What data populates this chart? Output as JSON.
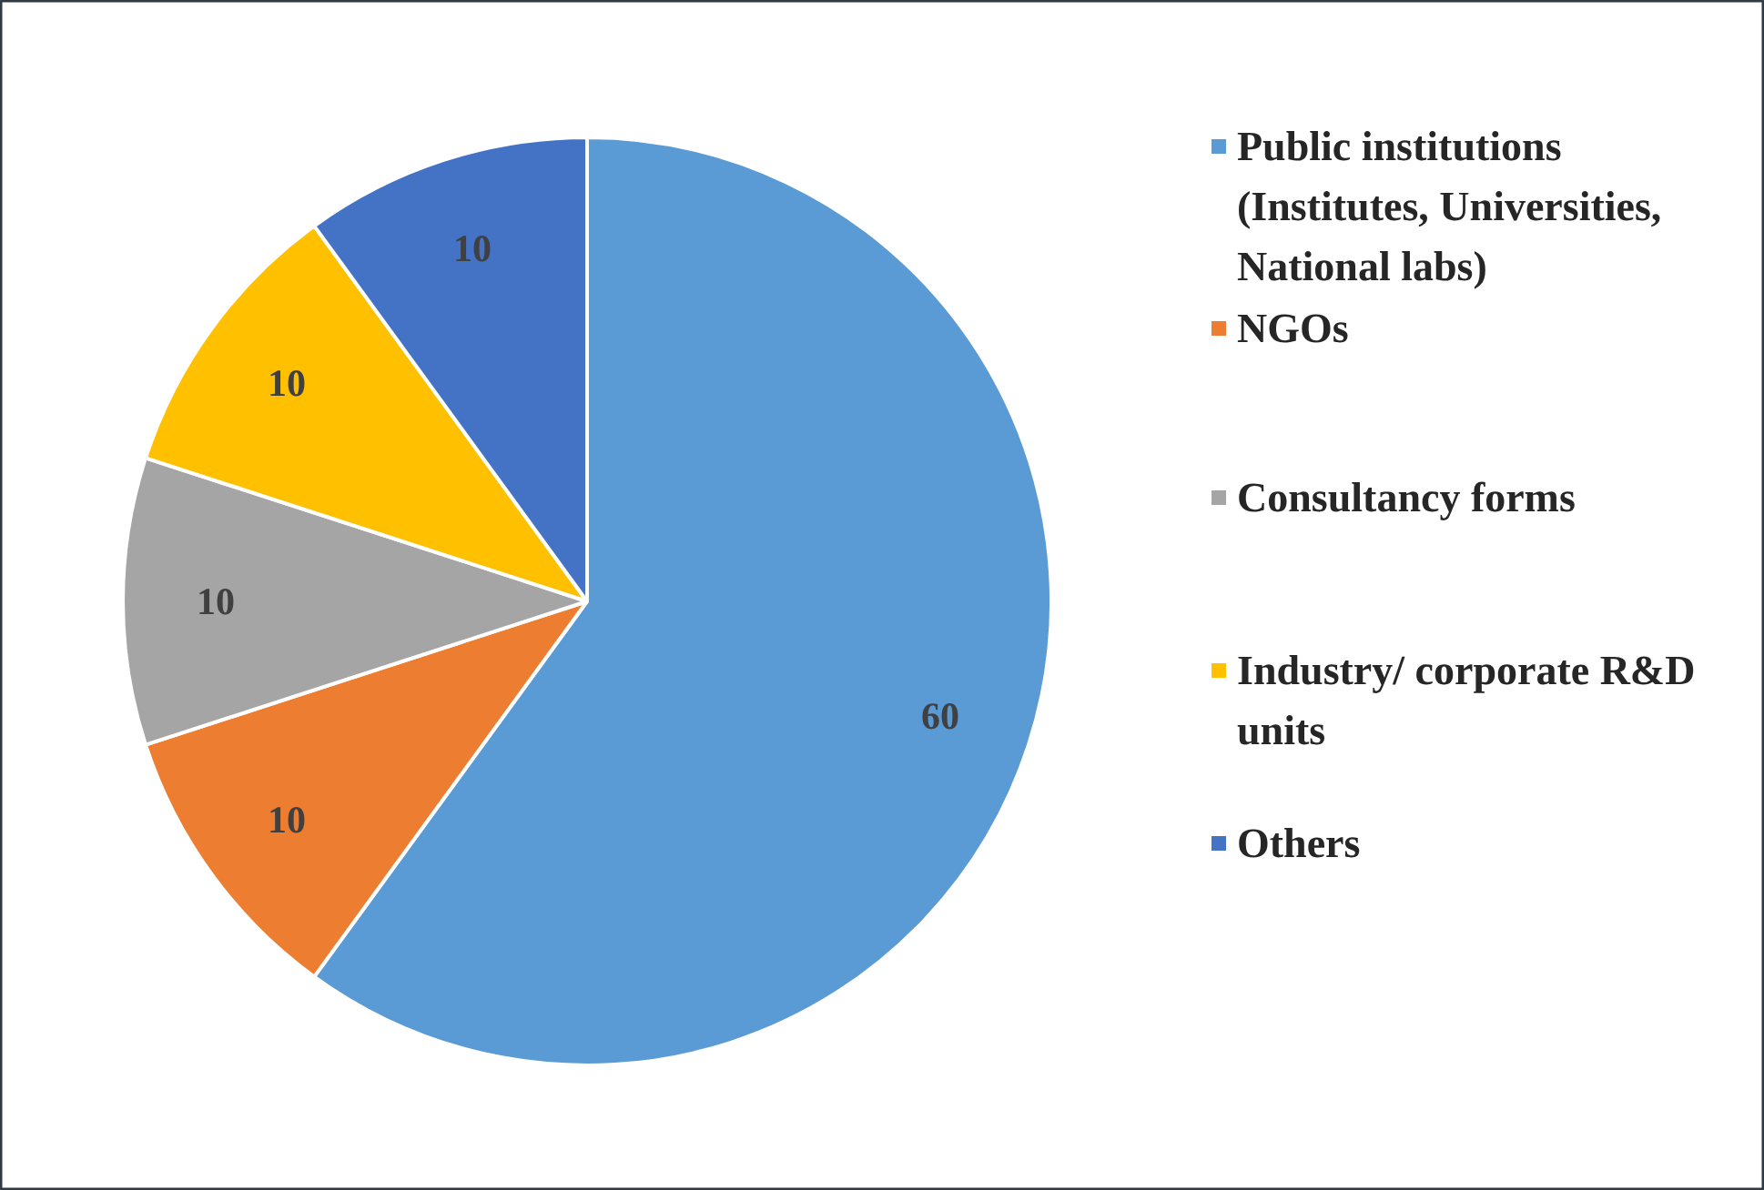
{
  "chart_data": {
    "type": "pie",
    "categories": [
      "Public institutions (Institutes, Universities, National labs)",
      "NGOs",
      "Consultancy forms",
      "Industry/ corporate R&D units",
      "Others"
    ],
    "values": [
      60,
      10,
      10,
      10,
      10
    ],
    "colors": [
      "#5b9bd5",
      "#ed7d31",
      "#a5a5a5",
      "#ffc000",
      "#4472c4"
    ],
    "data_labels": true,
    "legend": "right"
  }
}
